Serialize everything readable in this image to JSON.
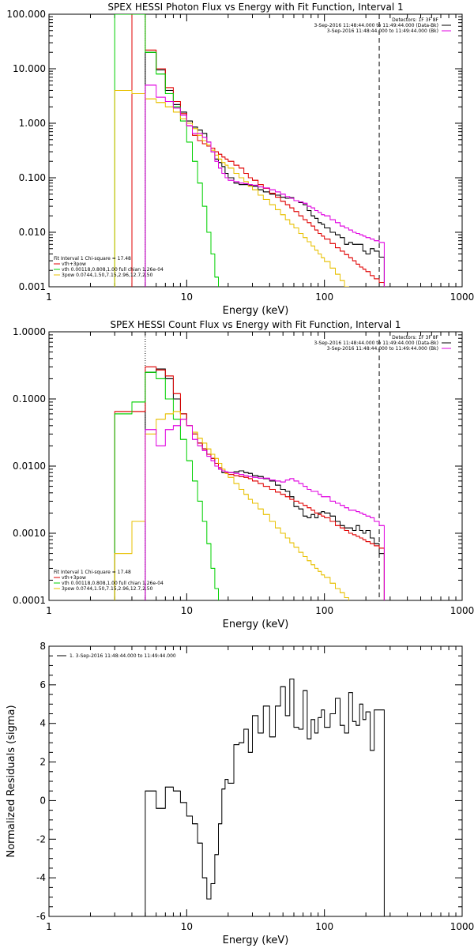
{
  "colors": {
    "axes": "#000000",
    "black": "#000000",
    "red": "#e00000",
    "green": "#00d000",
    "yellow": "#e8c000",
    "magenta": "#e000e0",
    "purple": "#8000ff"
  },
  "chart_data": [
    {
      "type": "line",
      "title": "SPEX HESSI Photon Flux vs Energy with Fit Function, Interval 1",
      "xlabel": "Energy (keV)",
      "ylabel": "",
      "xscale": "log",
      "yscale": "log",
      "xlim": [
        1,
        1000
      ],
      "ylim": [
        0.001,
        100
      ],
      "xticklabels": [
        "1",
        "10",
        "100",
        "1000"
      ],
      "yticks": [
        0.001,
        0.01,
        0.1,
        1,
        10,
        100
      ],
      "yticklabels": [
        "0.001",
        "0.010",
        "0.100",
        "1.000",
        "10.000",
        "100.000"
      ],
      "header_lines": [
        "Detectors: 1F 3F 8F",
        "3-Sep-2016 11:48:44.000 to 11:49:44.000 (Data-Bk)",
        "3-Sep-2016 11:48:44.000 to 11:49:44.000 (Bk)"
      ],
      "legend_lines": [
        "Fit Interval 1   Chi-square = 17.48",
        "vth+3pow",
        "vth 0.00118,0.808,1.00   full chian 1.26e-04",
        "3pow 0.0744,1.50,7.15,2.96,12.7,2.50"
      ],
      "vlines": [
        5,
        250
      ],
      "x": [
        3,
        4,
        5,
        6,
        7,
        8,
        9,
        10,
        11,
        12,
        13,
        14,
        15,
        16,
        17,
        18,
        19,
        20,
        22,
        24,
        26,
        28,
        30,
        33,
        36,
        40,
        44,
        48,
        52,
        56,
        60,
        65,
        70,
        75,
        80,
        85,
        90,
        95,
        100,
        110,
        120,
        130,
        140,
        150,
        160,
        170,
        180,
        190,
        200,
        215,
        230,
        250
      ],
      "series": [
        {
          "name": "Data-Bk",
          "color": "#000000",
          "values": [
            null,
            null,
            20,
            9.5,
            4,
            2.2,
            1.6,
            1.1,
            0.85,
            0.75,
            0.65,
            0.45,
            0.3,
            0.22,
            0.19,
            0.16,
            0.12,
            0.1,
            0.08,
            0.075,
            0.075,
            0.072,
            0.07,
            0.06,
            0.055,
            0.05,
            0.048,
            0.044,
            0.042,
            0.043,
            0.038,
            0.035,
            0.032,
            0.025,
            0.02,
            0.018,
            0.015,
            0.014,
            0.012,
            0.01,
            0.009,
            0.008,
            0.006,
            0.0065,
            0.006,
            0.006,
            0.006,
            0.0045,
            0.004,
            0.005,
            0.0045,
            0.0035
          ]
        },
        {
          "name": "vth+3pow",
          "color": "#e00000",
          "values": [
            null,
            110,
            22,
            10,
            4.5,
            2.5,
            1.5,
            0.9,
            0.6,
            0.48,
            0.42,
            0.38,
            0.35,
            0.3,
            0.27,
            0.24,
            0.22,
            0.2,
            0.17,
            0.15,
            0.12,
            0.1,
            0.09,
            0.075,
            0.064,
            0.052,
            0.044,
            0.037,
            0.032,
            0.028,
            0.024,
            0.02,
            0.017,
            0.015,
            0.013,
            0.011,
            0.0095,
            0.0085,
            0.0075,
            0.0062,
            0.0052,
            0.0045,
            0.0039,
            0.0034,
            0.003,
            0.0026,
            0.0023,
            0.0021,
            0.0019,
            0.0016,
            0.0014,
            0.0012
          ]
        },
        {
          "name": "vth",
          "color": "#00d000",
          "values": [
            100,
            100,
            20,
            8,
            3.5,
            2,
            1.1,
            0.45,
            0.2,
            0.08,
            0.03,
            0.01,
            0.004,
            0.0015,
            null,
            null,
            null,
            null,
            null,
            null,
            null,
            null,
            null,
            null,
            null,
            null,
            null,
            null,
            null,
            null,
            null,
            null,
            null,
            null,
            null,
            null,
            null,
            null,
            null,
            null,
            null,
            null,
            null,
            null,
            null,
            null,
            null,
            null,
            null,
            null,
            null,
            null
          ]
        },
        {
          "name": "3pow",
          "color": "#e8c000",
          "values": [
            4,
            3.5,
            2.8,
            2.4,
            2,
            1.6,
            1.2,
            1,
            0.8,
            0.6,
            0.48,
            0.4,
            0.32,
            0.26,
            0.22,
            0.19,
            0.17,
            0.15,
            0.12,
            0.1,
            0.085,
            0.07,
            0.06,
            0.048,
            0.04,
            0.032,
            0.026,
            0.021,
            0.017,
            0.014,
            0.012,
            0.0095,
            0.008,
            0.0067,
            0.0056,
            0.0047,
            0.004,
            0.0034,
            0.0029,
            0.0022,
            0.0017,
            0.0013,
            0.001,
            null,
            null,
            null,
            null,
            null,
            null,
            null,
            null,
            null
          ]
        },
        {
          "name": "Bk",
          "color": "#e000e0",
          "values": [
            null,
            null,
            5,
            3,
            2.5,
            1.9,
            1.4,
            0.9,
            0.65,
            0.65,
            0.55,
            0.45,
            0.3,
            0.2,
            0.15,
            0.12,
            0.1,
            0.09,
            0.085,
            0.08,
            0.078,
            0.075,
            0.073,
            0.068,
            0.065,
            0.06,
            0.055,
            0.05,
            0.045,
            0.042,
            0.038,
            0.036,
            0.034,
            0.03,
            0.028,
            0.025,
            0.023,
            0.021,
            0.02,
            0.017,
            0.015,
            0.013,
            0.012,
            0.011,
            0.01,
            0.0095,
            0.009,
            0.0085,
            0.008,
            0.0075,
            0.007,
            0.0065
          ]
        }
      ]
    },
    {
      "type": "line",
      "title": "SPEX HESSI Count Flux vs Energy with Fit Function, Interval 1",
      "xlabel": "Energy (keV)",
      "ylabel": "",
      "xscale": "log",
      "yscale": "log",
      "xlim": [
        1,
        1000
      ],
      "ylim": [
        0.0001,
        1
      ],
      "xticklabels": [
        "1",
        "10",
        "100",
        "1000"
      ],
      "yticks": [
        0.0001,
        0.001,
        0.01,
        0.1,
        1
      ],
      "yticklabels": [
        "0.0001",
        "0.0010",
        "0.0100",
        "0.1000",
        "1.0000"
      ],
      "header_lines": [
        "Detectors: 1F 3F 8F",
        "3-Sep-2016 11:48:44.000 to 11:49:44.000 (Data-Bk)",
        "3-Sep-2016 11:48:44.000 to 11:49:44.000 (Bk)"
      ],
      "legend_lines": [
        "Fit Interval 1   Chi-square = 17.48",
        "vth+3pow",
        "vth 0.00118,0.808,1.00   full chian 1.26e-04",
        "3pow 0.0744,1.50,7.15,2.96,12.7,2.50"
      ],
      "vlines": [
        5,
        250
      ],
      "x": [
        3,
        4,
        5,
        6,
        7,
        8,
        9,
        10,
        11,
        12,
        13,
        14,
        15,
        16,
        17,
        18,
        19,
        20,
        22,
        24,
        26,
        28,
        30,
        33,
        36,
        40,
        44,
        48,
        52,
        56,
        60,
        65,
        70,
        75,
        80,
        85,
        90,
        95,
        100,
        110,
        120,
        130,
        140,
        150,
        160,
        170,
        180,
        190,
        200,
        215,
        230,
        250
      ],
      "series": [
        {
          "name": "Data-Bk",
          "color": "#000000",
          "values": [
            null,
            null,
            0.25,
            0.28,
            0.2,
            0.1,
            0.06,
            0.04,
            0.03,
            0.022,
            0.018,
            0.015,
            0.013,
            0.011,
            0.009,
            0.008,
            0.008,
            0.008,
            0.0082,
            0.0085,
            0.008,
            0.0078,
            0.0072,
            0.007,
            0.0065,
            0.006,
            0.0052,
            0.0045,
            0.0042,
            0.0035,
            0.0025,
            0.0023,
            0.0018,
            0.0017,
            0.0019,
            0.0017,
            0.002,
            0.0021,
            0.002,
            0.0018,
            0.0015,
            0.0013,
            0.0012,
            0.0012,
            0.0011,
            0.0013,
            0.0011,
            0.001,
            0.0011,
            0.00085,
            0.0007,
            0.0005
          ]
        },
        {
          "name": "vth+3pow",
          "color": "#e00000",
          "values": [
            0.065,
            0.065,
            0.3,
            0.27,
            0.22,
            0.12,
            0.06,
            0.04,
            0.03,
            0.022,
            0.018,
            0.015,
            0.013,
            0.011,
            0.0095,
            0.0085,
            0.008,
            0.0075,
            0.0072,
            0.007,
            0.0068,
            0.0065,
            0.006,
            0.0055,
            0.005,
            0.0045,
            0.0041,
            0.0038,
            0.0035,
            0.0032,
            0.003,
            0.0028,
            0.0026,
            0.0024,
            0.0022,
            0.002,
            0.0019,
            0.0018,
            0.0017,
            0.0015,
            0.0013,
            0.0012,
            0.0011,
            0.001,
            0.00095,
            0.0009,
            0.00085,
            0.0008,
            0.00075,
            0.0007,
            0.00065,
            0.0006
          ]
        },
        {
          "name": "vth",
          "color": "#00d000",
          "values": [
            0.06,
            0.09,
            0.25,
            0.2,
            0.1,
            0.05,
            0.025,
            0.012,
            0.006,
            0.003,
            0.0015,
            0.0007,
            0.0003,
            0.00015,
            null,
            null,
            null,
            null,
            null,
            null,
            null,
            null,
            null,
            null,
            null,
            null,
            null,
            null,
            null,
            null,
            null,
            null,
            null,
            null,
            null,
            null,
            null,
            null,
            null,
            null,
            null,
            null,
            null,
            null,
            null,
            null,
            null,
            null,
            null,
            null,
            null,
            null
          ]
        },
        {
          "name": "3pow",
          "color": "#e8c000",
          "values": [
            0.0005,
            0.0015,
            0.03,
            0.05,
            0.06,
            0.065,
            0.05,
            0.04,
            0.032,
            0.026,
            0.022,
            0.018,
            0.015,
            0.013,
            0.011,
            0.009,
            0.0078,
            0.0068,
            0.0055,
            0.0045,
            0.0038,
            0.0032,
            0.0028,
            0.0023,
            0.0019,
            0.0015,
            0.0012,
            0.001,
            0.00085,
            0.00072,
            0.00062,
            0.00052,
            0.00045,
            0.00039,
            0.00034,
            0.0003,
            0.00027,
            0.00024,
            0.00022,
            0.00018,
            0.00015,
            0.00013,
            0.00011,
            null,
            null,
            null,
            null,
            null,
            null,
            null,
            null,
            null
          ]
        },
        {
          "name": "Bk",
          "color": "#e000e0",
          "values": [
            null,
            null,
            0.035,
            0.02,
            0.035,
            0.04,
            0.05,
            0.04,
            0.025,
            0.02,
            0.017,
            0.014,
            0.012,
            0.01,
            0.009,
            0.0085,
            0.0082,
            0.008,
            0.0078,
            0.0075,
            0.0072,
            0.007,
            0.0068,
            0.0066,
            0.0066,
            0.0062,
            0.006,
            0.0058,
            0.0062,
            0.0065,
            0.006,
            0.0055,
            0.005,
            0.0045,
            0.0042,
            0.0042,
            0.0038,
            0.0035,
            0.0035,
            0.003,
            0.0028,
            0.0026,
            0.0024,
            0.0022,
            0.0022,
            0.0021,
            0.002,
            0.0019,
            0.0018,
            0.0017,
            0.0015,
            0.0013
          ]
        }
      ]
    },
    {
      "type": "line",
      "title": "",
      "xlabel": "Energy (keV)",
      "ylabel": "Normalized Residuals (sigma)",
      "xscale": "log",
      "yscale": "linear",
      "xlim": [
        1,
        1000
      ],
      "ylim": [
        -6,
        8
      ],
      "xticklabels": [
        "1",
        "10",
        "100",
        "1000"
      ],
      "yticks": [
        -6,
        -4,
        -2,
        0,
        2,
        4,
        6,
        8
      ],
      "yticklabels": [
        "-6",
        "-4",
        "-2",
        "0",
        "2",
        "4",
        "6",
        "8"
      ],
      "legend_lines": [
        "1.  3-Sep-2016 11:48:44.000 to 11:49:44.000"
      ],
      "x": [
        5,
        6,
        7,
        8,
        9,
        10,
        11,
        12,
        13,
        14,
        15,
        16,
        17,
        18,
        19,
        20,
        22,
        24,
        26,
        28,
        30,
        33,
        36,
        40,
        44,
        48,
        52,
        56,
        60,
        65,
        70,
        75,
        80,
        85,
        90,
        95,
        100,
        110,
        120,
        130,
        140,
        150,
        160,
        170,
        180,
        190,
        200,
        215,
        230,
        250
      ],
      "series": [
        {
          "name": "1.  3-Sep-2016 11:48:44.000 to 11:49:44.000",
          "color": "#000000",
          "values": [
            0.5,
            -0.4,
            0.7,
            0.5,
            -0.1,
            -0.8,
            -1.2,
            -2.2,
            -4,
            -5.1,
            -4.3,
            -2.8,
            -1.2,
            0.6,
            1.1,
            0.9,
            2.9,
            3,
            3.7,
            2.5,
            4.4,
            3.5,
            4.9,
            3.3,
            4.9,
            5.9,
            4.4,
            6.3,
            3.8,
            3.7,
            5.7,
            3.2,
            4.2,
            3.5,
            4.3,
            4.7,
            3.8,
            4.5,
            5.3,
            3.9,
            3.5,
            5.6,
            4.1,
            3.9,
            5,
            4.2,
            4.6,
            2.6,
            4.7,
            4.7
          ]
        }
      ]
    }
  ]
}
